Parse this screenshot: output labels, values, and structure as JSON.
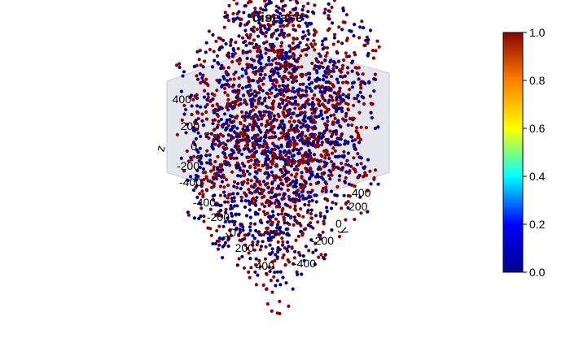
{
  "chart_data": {
    "type": "scatter",
    "title": "disease",
    "xlabel": "x",
    "ylabel": "y",
    "zlabel": "z",
    "xlim": [
      -500,
      500
    ],
    "ylim": [
      -500,
      500
    ],
    "zlim": [
      -500,
      500
    ],
    "x_ticks": [
      "-400",
      "-200",
      "0",
      "200",
      "400"
    ],
    "y_ticks": [
      "-400",
      "-200",
      "0",
      "200",
      "400"
    ],
    "z_ticks": [
      "-400",
      "-200",
      "0",
      "200",
      "400"
    ],
    "color_variable_range": [
      0.0,
      1.0
    ],
    "colorbar_ticks": [
      "0.0",
      "0.2",
      "0.4",
      "0.6",
      "0.8",
      "1.0"
    ],
    "colorbar_colors": [
      "#00008B",
      "#0000FF",
      "#00FFFF",
      "#FFFF00",
      "#FF7F00",
      "#8B0000"
    ],
    "point_values_present": [
      0,
      1
    ],
    "point_colors": {
      "0": "#00008B",
      "1": "#8B0000"
    },
    "point_count_estimate": 6000,
    "panel_color": "#e6e6ee",
    "grid": false,
    "colorbar_position": "right"
  }
}
